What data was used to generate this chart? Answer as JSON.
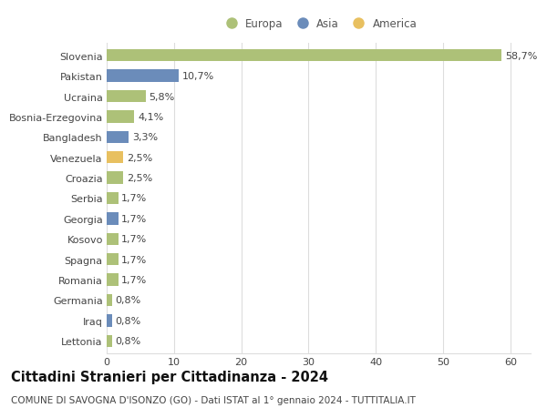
{
  "categories": [
    "Slovenia",
    "Pakistan",
    "Ucraina",
    "Bosnia-Erzegovina",
    "Bangladesh",
    "Venezuela",
    "Croazia",
    "Serbia",
    "Georgia",
    "Kosovo",
    "Spagna",
    "Romania",
    "Germania",
    "Iraq",
    "Lettonia"
  ],
  "values": [
    58.7,
    10.7,
    5.8,
    4.1,
    3.3,
    2.5,
    2.5,
    1.7,
    1.7,
    1.7,
    1.7,
    1.7,
    0.8,
    0.8,
    0.8
  ],
  "labels": [
    "58,7%",
    "10,7%",
    "5,8%",
    "4,1%",
    "3,3%",
    "2,5%",
    "2,5%",
    "1,7%",
    "1,7%",
    "1,7%",
    "1,7%",
    "1,7%",
    "0,8%",
    "0,8%",
    "0,8%"
  ],
  "continents": [
    "Europa",
    "Asia",
    "Europa",
    "Europa",
    "Asia",
    "America",
    "Europa",
    "Europa",
    "Asia",
    "Europa",
    "Europa",
    "Europa",
    "Europa",
    "Asia",
    "Europa"
  ],
  "colors": {
    "Europa": "#adc178",
    "Asia": "#6b8cba",
    "America": "#e8c060"
  },
  "title": "Cittadini Stranieri per Cittadinanza - 2024",
  "subtitle": "COMUNE DI SAVOGNA D'ISONZO (GO) - Dati ISTAT al 1° gennaio 2024 - TUTTITALIA.IT",
  "xlim": [
    0,
    63
  ],
  "xticks": [
    0,
    10,
    20,
    30,
    40,
    50,
    60
  ],
  "background_color": "#ffffff",
  "grid_color": "#dddddd",
  "bar_height": 0.6,
  "label_fontsize": 8,
  "title_fontsize": 10.5,
  "subtitle_fontsize": 7.5,
  "tick_fontsize": 8,
  "legend_fontsize": 8.5
}
